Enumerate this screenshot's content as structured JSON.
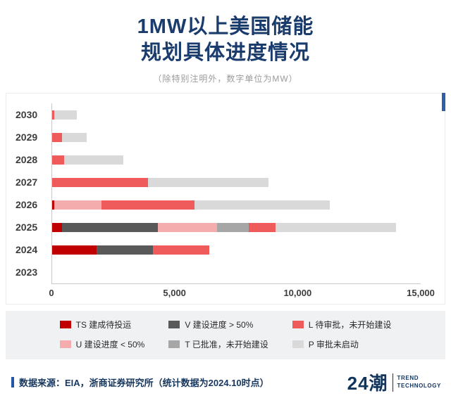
{
  "header": {
    "title_line1": "1MW以上美国储能",
    "title_line2": "规划具体进度情况",
    "subtitle": "（除特别注明外，数字单位为MW）"
  },
  "footer": {
    "source": "数据来源：EIA，浙商证券研究所（统计数据为2024.10时点）",
    "logo_text": "24潮",
    "logo_sub1": "TREND",
    "logo_sub2": "TECHNOLOGY"
  },
  "colors": {
    "title_navy": "#1a3c6d",
    "accent_blue": "#2f5fac",
    "legend_bg": "#f0f1f3",
    "axis_gray": "#c9c9c9"
  },
  "chart_data": {
    "type": "bar",
    "orientation": "horizontal-stacked",
    "title": "1MW以上美国储能规划具体进度情况",
    "unit": "MW",
    "categories": [
      "2030",
      "2029",
      "2028",
      "2027",
      "2026",
      "2025",
      "2024",
      "2023"
    ],
    "xlim": [
      0,
      15000
    ],
    "grid": false,
    "legend_position": "bottom",
    "xticks": [
      {
        "value": 0,
        "label": "0"
      },
      {
        "value": 5000,
        "label": "5,000"
      },
      {
        "value": 10000,
        "label": "10,000"
      },
      {
        "value": 15000,
        "label": "15,000"
      }
    ],
    "series": [
      {
        "key": "TS",
        "name": "TS 建成待投运",
        "color": "#c00000",
        "values": [
          0,
          0,
          0,
          0,
          100,
          400,
          1800,
          0
        ]
      },
      {
        "key": "V",
        "name": "V 建设进度 > 50%",
        "color": "#595959",
        "values": [
          0,
          0,
          0,
          0,
          0,
          3900,
          2300,
          0
        ]
      },
      {
        "key": "U",
        "name": "U 建设进度 < 50%",
        "color": "#f5acac",
        "values": [
          0,
          0,
          0,
          0,
          1900,
          2400,
          0,
          0
        ]
      },
      {
        "key": "T",
        "name": "T 已批准，未开始建设",
        "color": "#a6a6a6",
        "values": [
          0,
          0,
          0,
          0,
          0,
          1300,
          0,
          0
        ]
      },
      {
        "key": "L",
        "name": "L 待审批，未开始建设",
        "color": "#ef5b5b",
        "values": [
          100,
          400,
          500,
          3900,
          3800,
          1100,
          2300,
          0
        ]
      },
      {
        "key": "P",
        "name": "P 审批未启动",
        "color": "#d9d9d9",
        "values": [
          900,
          1000,
          2400,
          4900,
          5500,
          4900,
          0,
          0
        ]
      }
    ],
    "legend_order": [
      "TS",
      "V",
      "L",
      "U",
      "T",
      "P"
    ]
  }
}
